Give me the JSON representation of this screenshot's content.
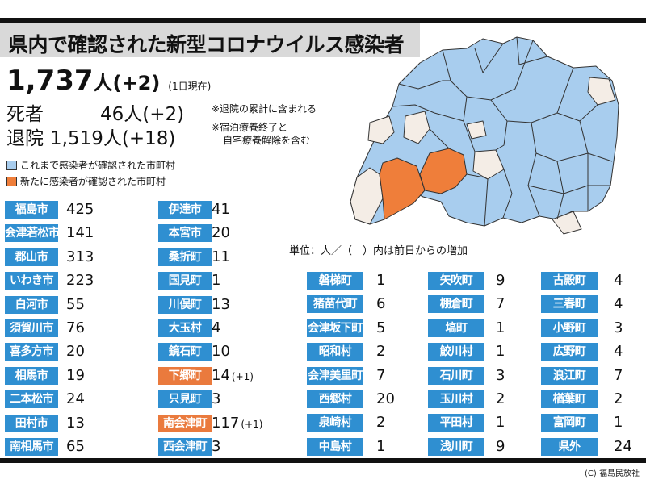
{
  "title": "県内で確認された新型コロナウイルス感染者",
  "summary": {
    "total": "1,737",
    "total_unit": "人",
    "total_change": "(+2)",
    "date": "(1日現在)",
    "deaths_label": "死者",
    "deaths_value": "46",
    "deaths_unit": "人",
    "deaths_change": "(+2)",
    "deaths_note": "※退院の累計に含まれる",
    "recovered_label": "退院",
    "recovered_value": "1,519",
    "recovered_unit": "人",
    "recovered_change": "(+18)",
    "recovered_note_1": "※宿泊療養終了と",
    "recovered_note_2": "自宅療養解除を含む"
  },
  "legend": {
    "confirmed": "これまで感染者が確認された市町村",
    "new": "新たに感染者が確認された市町村",
    "colors": {
      "confirmed": "#a8cdee",
      "new": "#ef7e3a",
      "none": "#f4ede6"
    }
  },
  "unit_note": "単位：人／（　）内は前日からの増加",
  "columns": [
    [
      {
        "name": "福島市",
        "value": "425"
      },
      {
        "name": "会津若松市",
        "value": "141"
      },
      {
        "name": "郡山市",
        "value": "313"
      },
      {
        "name": "いわき市",
        "value": "223"
      },
      {
        "name": "白河市",
        "value": "55"
      },
      {
        "name": "須賀川市",
        "value": "76"
      },
      {
        "name": "喜多方市",
        "value": "20"
      },
      {
        "name": "相馬市",
        "value": "19"
      },
      {
        "name": "二本松市",
        "value": "24"
      },
      {
        "name": "田村市",
        "value": "13"
      },
      {
        "name": "南相馬市",
        "value": "65"
      }
    ],
    [
      {
        "name": "伊達市",
        "value": "41"
      },
      {
        "name": "本宮市",
        "value": "20"
      },
      {
        "name": "桑折町",
        "value": "11"
      },
      {
        "name": "国見町",
        "value": "1"
      },
      {
        "name": "川俣町",
        "value": "13"
      },
      {
        "name": "大玉村",
        "value": "4"
      },
      {
        "name": "鏡石町",
        "value": "10"
      },
      {
        "name": "下郷町",
        "value": "14",
        "inc": "(+1)",
        "new": true
      },
      {
        "name": "只見町",
        "value": "3"
      },
      {
        "name": "南会津町",
        "value": "117",
        "inc": "(+1)",
        "new": true
      },
      {
        "name": "西会津町",
        "value": "3"
      }
    ],
    [
      {
        "name": "磐梯町",
        "value": "1"
      },
      {
        "name": "猪苗代町",
        "value": "6"
      },
      {
        "name": "会津坂下町",
        "value": "5"
      },
      {
        "name": "昭和村",
        "value": "2"
      },
      {
        "name": "会津美里町",
        "value": "7"
      },
      {
        "name": "西郷村",
        "value": "20"
      },
      {
        "name": "泉崎村",
        "value": "2"
      },
      {
        "name": "中島村",
        "value": "1"
      }
    ],
    [
      {
        "name": "矢吹町",
        "value": "9"
      },
      {
        "name": "棚倉町",
        "value": "7"
      },
      {
        "name": "塙町",
        "value": "1"
      },
      {
        "name": "鮫川村",
        "value": "1"
      },
      {
        "name": "石川町",
        "value": "3"
      },
      {
        "name": "玉川村",
        "value": "2"
      },
      {
        "name": "平田村",
        "value": "1"
      },
      {
        "name": "浅川町",
        "value": "9"
      }
    ],
    [
      {
        "name": "古殿町",
        "value": "4"
      },
      {
        "name": "三春町",
        "value": "4"
      },
      {
        "name": "小野町",
        "value": "3"
      },
      {
        "name": "広野町",
        "value": "4"
      },
      {
        "name": "浪江町",
        "value": "7"
      },
      {
        "name": "楢葉町",
        "value": "2"
      },
      {
        "name": "富岡町",
        "value": "1"
      },
      {
        "name": "県外",
        "value": "24"
      }
    ]
  ],
  "credit": "(C) 福島民放社"
}
